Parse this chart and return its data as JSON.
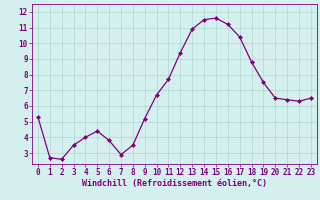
{
  "x": [
    0,
    1,
    2,
    3,
    4,
    5,
    6,
    7,
    8,
    9,
    10,
    11,
    12,
    13,
    14,
    15,
    16,
    17,
    18,
    19,
    20,
    21,
    22,
    23
  ],
  "y": [
    5.3,
    2.7,
    2.6,
    3.5,
    4.0,
    4.4,
    3.8,
    2.9,
    3.5,
    5.2,
    6.7,
    7.7,
    9.4,
    10.9,
    11.5,
    11.6,
    11.2,
    10.4,
    8.8,
    7.5,
    6.5,
    6.4,
    6.3,
    6.5
  ],
  "line_color": "#800080",
  "marker": "D",
  "markersize": 2.0,
  "linewidth": 0.9,
  "background_color": "#d4f0ee",
  "grid_color": "#b0d8d4",
  "xlabel": "Windchill (Refroidissement éolien,°C)",
  "xlabel_fontsize": 6.0,
  "xlim": [
    -0.5,
    23.5
  ],
  "ylim": [
    2.3,
    12.5
  ],
  "yticks": [
    3,
    4,
    5,
    6,
    7,
    8,
    9,
    10,
    11,
    12
  ],
  "xticks": [
    0,
    1,
    2,
    3,
    4,
    5,
    6,
    7,
    8,
    9,
    10,
    11,
    12,
    13,
    14,
    15,
    16,
    17,
    18,
    19,
    20,
    21,
    22,
    23
  ],
  "tick_fontsize": 5.5,
  "axis_color": "#800080",
  "spine_color": "#800080"
}
